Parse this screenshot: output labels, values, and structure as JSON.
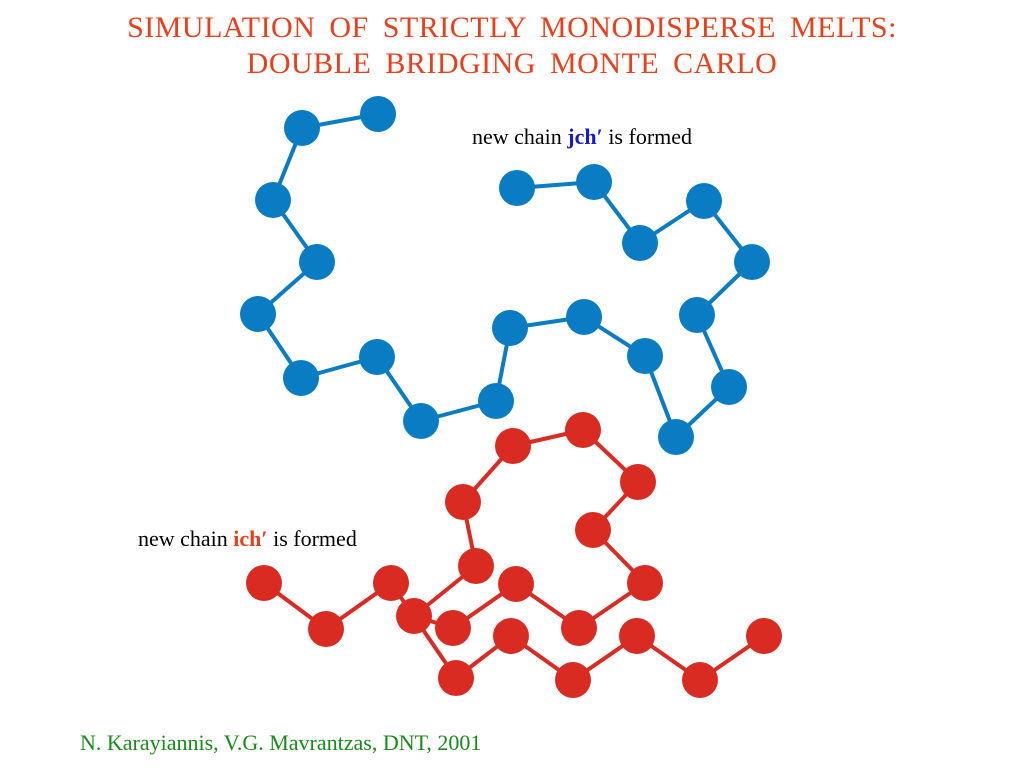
{
  "title": {
    "line1": "SIMULATION  OF  STRICTLY  MONODISPERSE  MELTS:",
    "line2": "DOUBLE  BRIDGING  MONTE  CARLO",
    "color": "#e8401c"
  },
  "label_jch": {
    "prefix": "new chain ",
    "name": "jch′",
    "suffix": " is formed",
    "name_color": "#1a1acc"
  },
  "label_ich": {
    "prefix": "new chain ",
    "name": "ich′",
    "suffix": " is formed",
    "name_color": "#e8401c"
  },
  "citation": {
    "text": "N. Karayiannis, V.G. Mavrantzas, DNT, 2001",
    "color": "#1a8a1a"
  },
  "colors": {
    "blue_chain": "#0a7cc4",
    "red_chain": "#d92b22"
  }
}
